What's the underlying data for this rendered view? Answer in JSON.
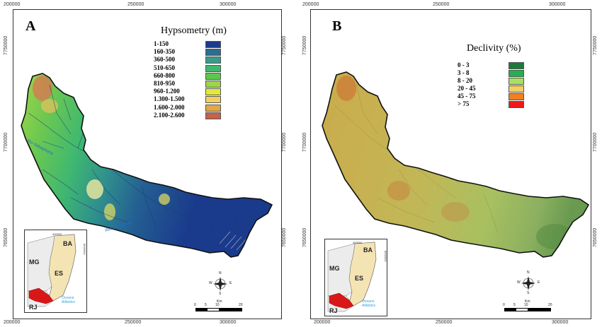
{
  "panel_a": {
    "letter": "A",
    "legend_title": "Hypsometry (m)",
    "legend": [
      {
        "label": "1-150",
        "color": "#1a3a8c"
      },
      {
        "label": "160-350",
        "color": "#2b6e8e"
      },
      {
        "label": "360-500",
        "color": "#3a9a8a"
      },
      {
        "label": "510-650",
        "color": "#3fb86a"
      },
      {
        "label": "660-800",
        "color": "#5cc84a"
      },
      {
        "label": "810-950",
        "color": "#9ad64a"
      },
      {
        "label": "960-1.200",
        "color": "#e4e83c"
      },
      {
        "label": "1.300-1.500",
        "color": "#f0d060"
      },
      {
        "label": "1.600-2.000",
        "color": "#e0a848"
      },
      {
        "label": "2.100-2.600",
        "color": "#c8604a"
      }
    ],
    "top_coords": [
      "200000",
      "250000",
      "300000"
    ],
    "bottom_coords": [
      "200000",
      "250000",
      "300000"
    ],
    "left_coords": [
      "7750000",
      "7700000",
      "7650000"
    ],
    "right_coords": [
      "7750000",
      "7700000",
      "7650000"
    ],
    "river_labels": [
      "Rio Itabapoana",
      "Rio Itabapoana"
    ],
    "inset": {
      "states": [
        "BA",
        "MG",
        "ES",
        "RJ"
      ],
      "ocean": [
        "Oceano",
        "Atlântico"
      ],
      "coords": [
        "400000",
        "8000000"
      ]
    },
    "scale": {
      "unit": "Km",
      "ticks": [
        "0",
        "5",
        "10",
        "20"
      ]
    }
  },
  "panel_b": {
    "letter": "B",
    "legend_title": "Declivity (%)",
    "legend": [
      {
        "label": "0 - 3",
        "color": "#1e7a3a"
      },
      {
        "label": "3 - 8",
        "color": "#22b050"
      },
      {
        "label": "8 - 20",
        "color": "#a8e060"
      },
      {
        "label": "20 - 45",
        "color": "#f0d060"
      },
      {
        "label": "45 - 75",
        "color": "#f08020"
      },
      {
        "label": "> 75",
        "color": "#f01818"
      }
    ],
    "top_coords": [
      "200000",
      "250000",
      "300000"
    ],
    "bottom_coords": [
      "200000",
      "250000",
      "300000"
    ],
    "left_coords": [
      "7750000",
      "7700000",
      "7650000"
    ],
    "right_coords": [
      "7750000",
      "7700000",
      "7650000"
    ],
    "inset": {
      "states": [
        "BA",
        "MG",
        "ES",
        "RJ"
      ],
      "ocean": [
        "Oceano",
        "Atlântico"
      ],
      "coords": [
        "400000",
        "8000000"
      ]
    },
    "scale": {
      "unit": "Km",
      "ticks": [
        "0",
        "5",
        "10",
        "20"
      ]
    }
  },
  "compass_labels": [
    "N",
    "S",
    "W",
    "E"
  ]
}
